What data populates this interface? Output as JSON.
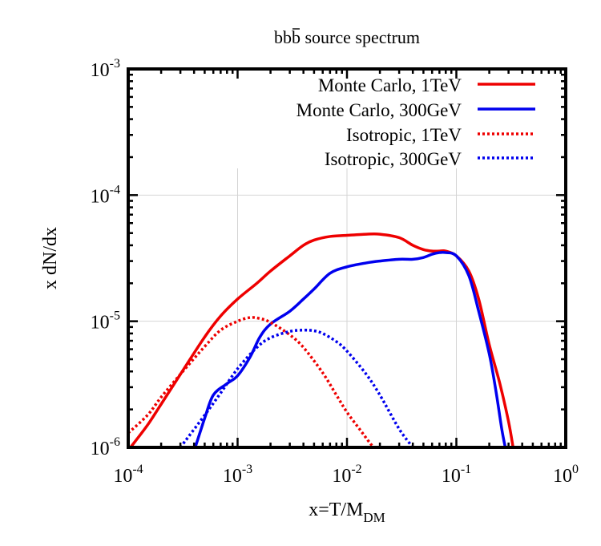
{
  "chart_data": {
    "type": "line",
    "title": "bb̄ source spectrum",
    "title_parts": {
      "main": "bb",
      "overlined": "b",
      "rest": " source spectrum"
    },
    "xlabel": "x=T/M",
    "xlabel_sub": "DM",
    "ylabel": "x dN/dx",
    "xscale": "log",
    "yscale": "log",
    "xlim": [
      0.0001,
      1
    ],
    "ylim": [
      1e-06,
      0.001
    ],
    "grid": true,
    "legend_position": "top-right",
    "x_ticks": [
      {
        "value": 0.0001,
        "base": "10",
        "exp": "-4"
      },
      {
        "value": 0.001,
        "base": "10",
        "exp": "-3"
      },
      {
        "value": 0.01,
        "base": "10",
        "exp": "-2"
      },
      {
        "value": 0.1,
        "base": "10",
        "exp": "-1"
      },
      {
        "value": 1,
        "base": "10",
        "exp": "0"
      }
    ],
    "y_ticks": [
      {
        "value": 1e-06,
        "base": "10",
        "exp": "-6"
      },
      {
        "value": 1e-05,
        "base": "10",
        "exp": "-5"
      },
      {
        "value": 0.0001,
        "base": "10",
        "exp": "-4"
      },
      {
        "value": 0.001,
        "base": "10",
        "exp": "-3"
      }
    ],
    "series": [
      {
        "name": "Monte Carlo, 1TeV",
        "color": "#ee0000",
        "style": "solid",
        "x": [
          0.000105,
          0.00015,
          0.0002,
          0.0003,
          0.0005,
          0.0007,
          0.001,
          0.0015,
          0.002,
          0.003,
          0.004,
          0.005,
          0.007,
          0.01,
          0.015,
          0.02,
          0.03,
          0.04,
          0.05,
          0.06,
          0.07,
          0.08,
          0.1,
          0.13,
          0.16,
          0.2,
          0.25,
          0.3,
          0.33
        ],
        "y": [
          1e-06,
          1.5e-06,
          2.2e-06,
          3.8e-06,
          7.5e-06,
          1.1e-05,
          1.5e-05,
          2e-05,
          2.5e-05,
          3.3e-05,
          4e-05,
          4.4e-05,
          4.7e-05,
          4.8e-05,
          4.9e-05,
          4.9e-05,
          4.6e-05,
          4e-05,
          3.7e-05,
          3.6e-05,
          3.6e-05,
          3.6e-05,
          3.3e-05,
          2.5e-05,
          1.5e-05,
          6.5e-06,
          3.2e-06,
          1.6e-06,
          1e-06
        ]
      },
      {
        "name": "Monte Carlo, 300GeV",
        "color": "#0000ee",
        "style": "solid",
        "x": [
          0.00041,
          0.0005,
          0.0006,
          0.0008,
          0.001,
          0.0013,
          0.0016,
          0.002,
          0.003,
          0.004,
          0.005,
          0.007,
          0.01,
          0.015,
          0.02,
          0.03,
          0.04,
          0.05,
          0.06,
          0.07,
          0.08,
          0.1,
          0.13,
          0.16,
          0.2,
          0.23,
          0.26,
          0.28
        ],
        "y": [
          1e-06,
          1.7e-06,
          2.6e-06,
          3.2e-06,
          3.7e-06,
          5.2e-06,
          7.5e-06,
          9.5e-06,
          1.2e-05,
          1.5e-05,
          1.8e-05,
          2.4e-05,
          2.7e-05,
          2.9e-05,
          3e-05,
          3.1e-05,
          3.1e-05,
          3.2e-05,
          3.4e-05,
          3.5e-05,
          3.5e-05,
          3.3e-05,
          2.3e-05,
          1.2e-05,
          5.5e-06,
          2.8e-06,
          1.4e-06,
          1e-06
        ]
      },
      {
        "name": "Isotropic, 1TeV",
        "color": "#ee0000",
        "style": "dotted",
        "x": [
          0.0001,
          0.00015,
          0.0002,
          0.0003,
          0.0005,
          0.0007,
          0.001,
          0.0013,
          0.0016,
          0.002,
          0.003,
          0.004,
          0.006,
          0.008,
          0.01,
          0.013,
          0.016,
          0.0175
        ],
        "y": [
          1.3e-06,
          1.8e-06,
          2.5e-06,
          3.8e-06,
          6.3e-06,
          8.5e-06,
          1e-05,
          1.07e-05,
          1.05e-05,
          9.8e-06,
          7.8e-06,
          6.2e-06,
          3.9e-06,
          2.6e-06,
          1.9e-06,
          1.4e-06,
          1.1e-06,
          1e-06
        ]
      },
      {
        "name": "Isotropic, 300GeV",
        "color": "#0000ee",
        "style": "dotted",
        "x": [
          0.0003,
          0.0005,
          0.0007,
          0.001,
          0.0015,
          0.002,
          0.003,
          0.004,
          0.005,
          0.006,
          0.008,
          0.01,
          0.015,
          0.02,
          0.03,
          0.04
        ],
        "y": [
          1e-06,
          1.8e-06,
          2.7e-06,
          4.2e-06,
          6.2e-06,
          7.4e-06,
          8.3e-06,
          8.5e-06,
          8.4e-06,
          8e-06,
          6.9e-06,
          5.8e-06,
          3.8e-06,
          2.6e-06,
          1.4e-06,
          1e-06
        ]
      }
    ]
  }
}
